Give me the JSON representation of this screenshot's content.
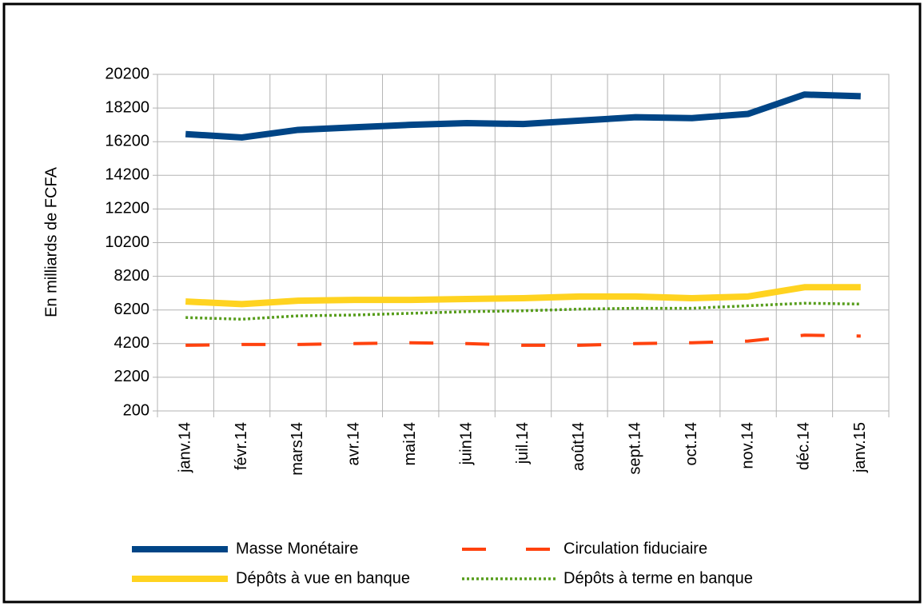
{
  "chart_data": {
    "type": "line",
    "y_label": "En milliards de FCFA",
    "categories": [
      "janv.14",
      "févr.14",
      "mars14",
      "avr.14",
      "mai14",
      "juin14",
      "juil.14",
      "août14",
      "sept.14",
      "oct.14",
      "nov.14",
      "déc.14",
      "janv.15"
    ],
    "series": [
      {
        "name": "Masse Monétaire",
        "color": "#004586",
        "style": "solid",
        "values": [
          16650,
          16450,
          16900,
          17050,
          17200,
          17300,
          17250,
          17450,
          17650,
          17600,
          17850,
          19000,
          18900
        ]
      },
      {
        "name": "Circulation fiduciaire",
        "color": "#ff420e",
        "style": "dashed",
        "values": [
          4100,
          4150,
          4150,
          4200,
          4250,
          4200,
          4100,
          4100,
          4200,
          4250,
          4350,
          4700,
          4650
        ]
      },
      {
        "name": "Dépôts à vue en banque",
        "color": "#ffd320",
        "style": "solid",
        "values": [
          6700,
          6550,
          6750,
          6800,
          6800,
          6850,
          6900,
          7000,
          7000,
          6900,
          7000,
          7550,
          7550
        ]
      },
      {
        "name": "Dépôts à terme en banque",
        "color": "#579d1c",
        "style": "dotted",
        "values": [
          5750,
          5650,
          5850,
          5900,
          6000,
          6100,
          6150,
          6250,
          6300,
          6300,
          6450,
          6600,
          6550
        ]
      }
    ],
    "ylim": [
      200,
      20200
    ],
    "yticks": [
      200,
      2200,
      4200,
      6200,
      8200,
      10200,
      12200,
      14200,
      16200,
      18200,
      20200
    ],
    "grid": true,
    "legend": "bottom"
  }
}
